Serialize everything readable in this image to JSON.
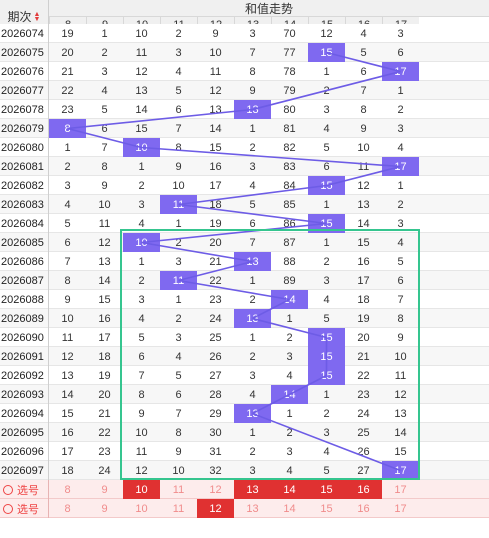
{
  "header": {
    "period_label": "期次",
    "title": "和值走势"
  },
  "columns": [
    "8",
    "9",
    "10",
    "11",
    "12",
    "13",
    "14",
    "15",
    "16",
    "17"
  ],
  "rows": [
    {
      "period": "2026074",
      "cells": [
        "19",
        "1",
        "10",
        "2",
        "9",
        "3",
        "70",
        "12",
        "4",
        "3"
      ],
      "hit": -1
    },
    {
      "period": "2026075",
      "cells": [
        "20",
        "2",
        "11",
        "3",
        "10",
        "7",
        "77",
        "15",
        "5",
        "6"
      ],
      "hit": 7
    },
    {
      "period": "2026076",
      "cells": [
        "21",
        "3",
        "12",
        "4",
        "11",
        "8",
        "78",
        "1",
        "6",
        "17"
      ],
      "hit": 9
    },
    {
      "period": "2026077",
      "cells": [
        "22",
        "4",
        "13",
        "5",
        "12",
        "9",
        "79",
        "2",
        "7",
        "1"
      ],
      "hit": -1
    },
    {
      "period": "2026078",
      "cells": [
        "23",
        "5",
        "14",
        "6",
        "13",
        "13",
        "80",
        "3",
        "8",
        "2"
      ],
      "hit": 5
    },
    {
      "period": "2026079",
      "cells": [
        "8",
        "6",
        "15",
        "7",
        "14",
        "1",
        "81",
        "4",
        "9",
        "3"
      ],
      "hit": 0
    },
    {
      "period": "2026080",
      "cells": [
        "1",
        "7",
        "10",
        "8",
        "15",
        "2",
        "82",
        "5",
        "10",
        "4"
      ],
      "hit": 2
    },
    {
      "period": "2026081",
      "cells": [
        "2",
        "8",
        "1",
        "9",
        "16",
        "3",
        "83",
        "6",
        "11",
        "17"
      ],
      "hit": 9
    },
    {
      "period": "2026082",
      "cells": [
        "3",
        "9",
        "2",
        "10",
        "17",
        "4",
        "84",
        "15",
        "12",
        "1"
      ],
      "hit": 7
    },
    {
      "period": "2026083",
      "cells": [
        "4",
        "10",
        "3",
        "11",
        "18",
        "5",
        "85",
        "1",
        "13",
        "2"
      ],
      "hit": 3
    },
    {
      "period": "2026084",
      "cells": [
        "5",
        "11",
        "4",
        "1",
        "19",
        "6",
        "86",
        "15",
        "14",
        "3"
      ],
      "hit": 7
    },
    {
      "period": "2026085",
      "cells": [
        "6",
        "12",
        "10",
        "2",
        "20",
        "7",
        "87",
        "1",
        "15",
        "4"
      ],
      "hit": 2
    },
    {
      "period": "2026086",
      "cells": [
        "7",
        "13",
        "1",
        "3",
        "21",
        "13",
        "88",
        "2",
        "16",
        "5"
      ],
      "hit": 5
    },
    {
      "period": "2026087",
      "cells": [
        "8",
        "14",
        "2",
        "11",
        "22",
        "1",
        "89",
        "3",
        "17",
        "6"
      ],
      "hit": 3
    },
    {
      "period": "2026088",
      "cells": [
        "9",
        "15",
        "3",
        "1",
        "23",
        "2",
        "14",
        "4",
        "18",
        "7"
      ],
      "hit": 6
    },
    {
      "period": "2026089",
      "cells": [
        "10",
        "16",
        "4",
        "2",
        "24",
        "13",
        "1",
        "5",
        "19",
        "8"
      ],
      "hit": 5
    },
    {
      "period": "2026090",
      "cells": [
        "11",
        "17",
        "5",
        "3",
        "25",
        "1",
        "2",
        "15",
        "20",
        "9"
      ],
      "hit": 7
    },
    {
      "period": "2026091",
      "cells": [
        "12",
        "18",
        "6",
        "4",
        "26",
        "2",
        "3",
        "15",
        "21",
        "10"
      ],
      "hit": 7
    },
    {
      "period": "2026092",
      "cells": [
        "13",
        "19",
        "7",
        "5",
        "27",
        "3",
        "4",
        "15",
        "22",
        "11"
      ],
      "hit": 7
    },
    {
      "period": "2026093",
      "cells": [
        "14",
        "20",
        "8",
        "6",
        "28",
        "4",
        "14",
        "1",
        "23",
        "12"
      ],
      "hit": 6
    },
    {
      "period": "2026094",
      "cells": [
        "15",
        "21",
        "9",
        "7",
        "29",
        "13",
        "1",
        "2",
        "24",
        "13"
      ],
      "hit": 5
    },
    {
      "period": "2026095",
      "cells": [
        "16",
        "22",
        "10",
        "8",
        "30",
        "1",
        "2",
        "3",
        "25",
        "14"
      ],
      "hit": -1
    },
    {
      "period": "2026096",
      "cells": [
        "17",
        "23",
        "11",
        "9",
        "31",
        "2",
        "3",
        "4",
        "26",
        "15"
      ],
      "hit": -1
    },
    {
      "period": "2026097",
      "cells": [
        "18",
        "24",
        "12",
        "10",
        "32",
        "3",
        "4",
        "5",
        "27",
        "17"
      ],
      "hit": 9
    }
  ],
  "pick_rows": [
    {
      "label": "选号",
      "values": [
        "8",
        "9",
        "10",
        "11",
        "12",
        "13",
        "14",
        "15",
        "16",
        "17"
      ],
      "on": [
        2,
        5,
        6,
        7,
        8
      ]
    },
    {
      "label": "选号",
      "values": [
        "8",
        "9",
        "10",
        "11",
        "12",
        "13",
        "14",
        "15",
        "16",
        "17"
      ],
      "on": [
        4
      ]
    }
  ],
  "colors": {
    "hit": "#7f69f0",
    "line": "#6d5ce6",
    "box": "#35c58f",
    "pick_on": "#e03131"
  }
}
